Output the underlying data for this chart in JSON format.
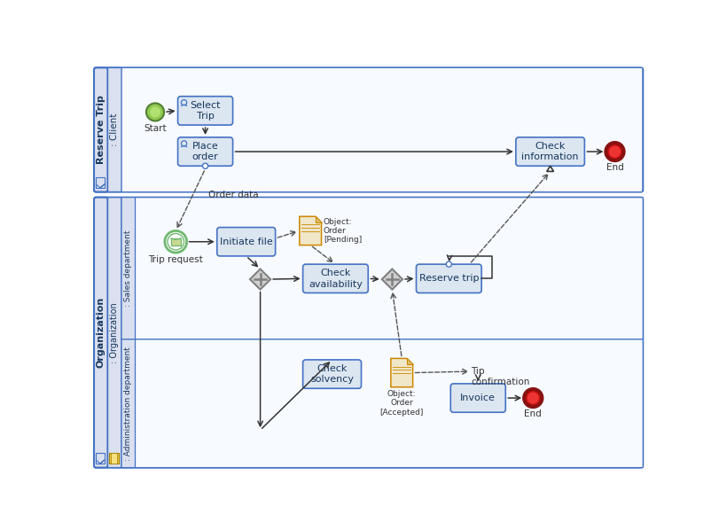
{
  "fig_width": 8.11,
  "fig_height": 5.98,
  "pool1_label": "Reserve Trip",
  "pool1_lane_label": ": Client",
  "pool2_label": "Organization",
  "pool2_lane1_label": ": Organization",
  "pool2_lane2_label": ": Sales department",
  "pool2_lane3_label": ": Administration department",
  "task_fill": "#dce6f1",
  "task_border": "#4472c4",
  "task_text": "#17375e",
  "lane_header_fill": "#dae0ef",
  "pool_border": "#4472c4",
  "gateway_fill": "#d0d0d0",
  "gateway_border": "#808080",
  "start_color": "#70b870",
  "end_color": "#cc2222",
  "msg_event_color": "#70b870",
  "data_obj_fill": "#f0e6c8",
  "data_obj_border": "#cc8800",
  "dashed_color": "#555555",
  "arrow_color": "#333333",
  "text_color": "#333333",
  "label_text_color": "#17375e"
}
